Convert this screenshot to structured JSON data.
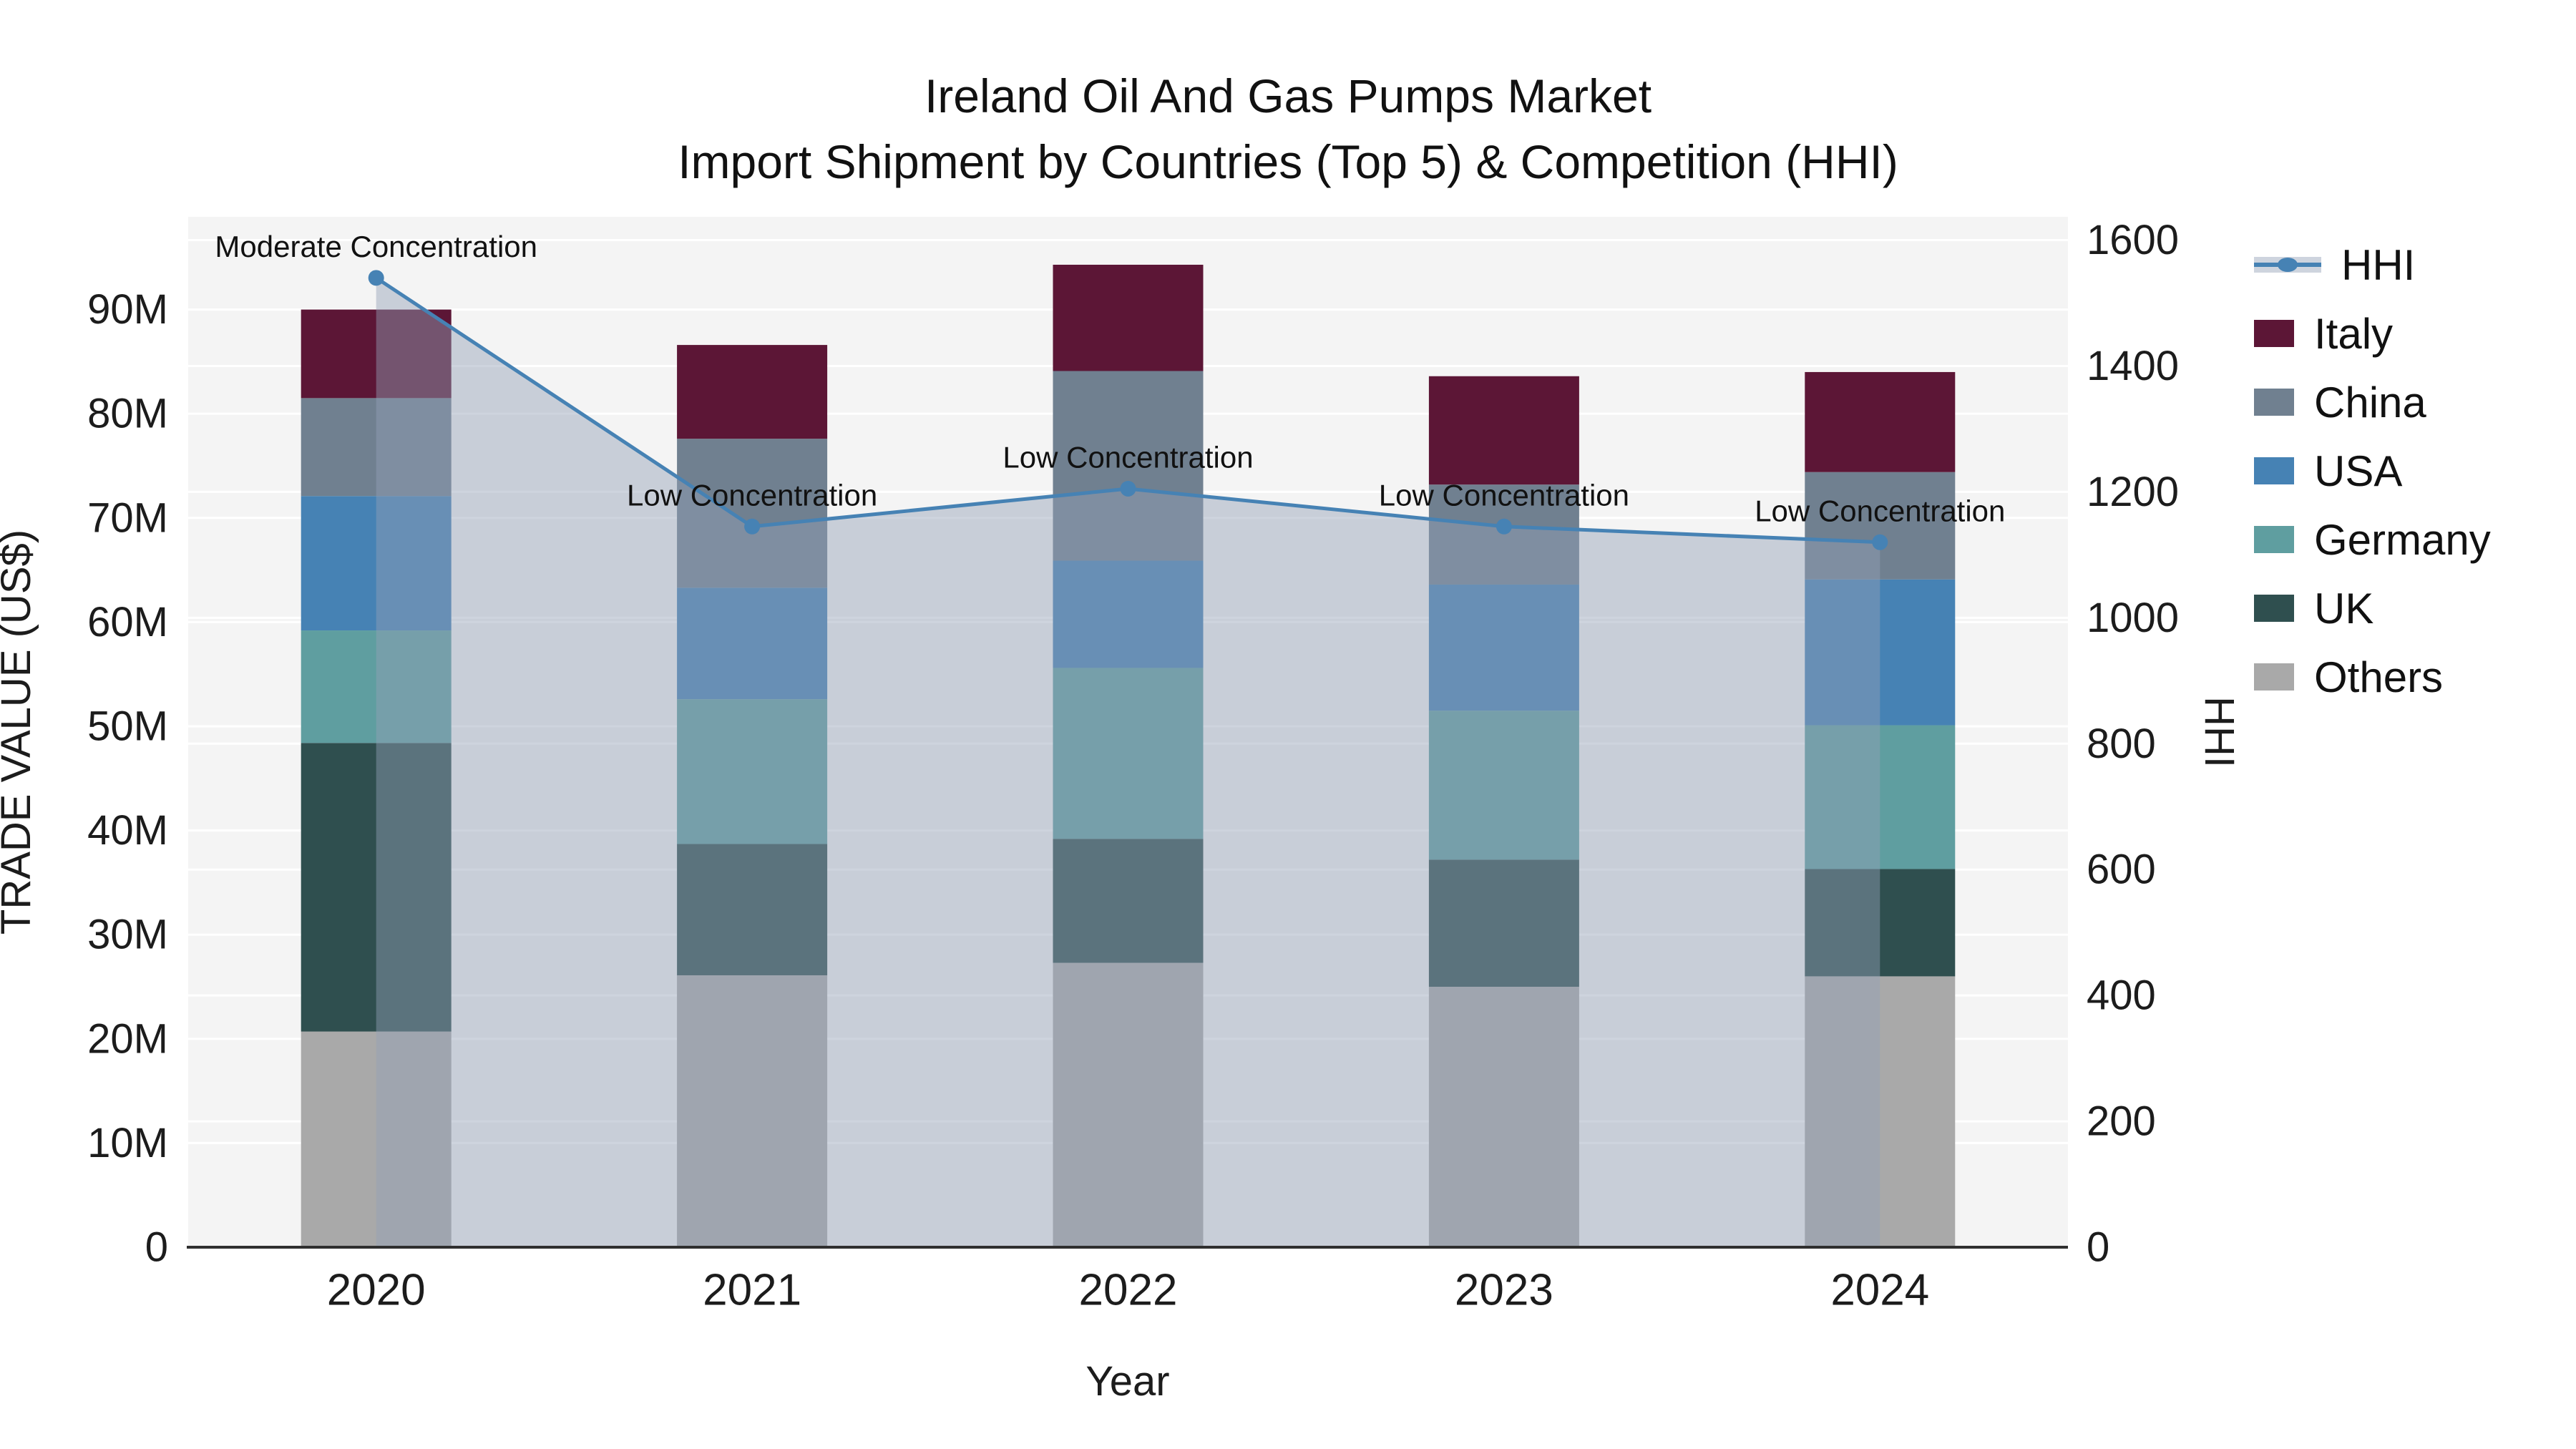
{
  "title": {
    "line1": "Ireland Oil And Gas Pumps Market",
    "line2": "Import Shipment by Countries (Top 5) & Competition (HHI)"
  },
  "chart_data": {
    "type": "combo: stacked bar (left axis) + line with area fill (right axis)",
    "x": [
      "2020",
      "2021",
      "2022",
      "2023",
      "2024"
    ],
    "xlabel": "Year",
    "left_axis": {
      "title": "TRADE VALUE (US$)",
      "tick_labels": [
        "0",
        "10M",
        "20M",
        "30M",
        "40M",
        "50M",
        "60M",
        "70M",
        "80M",
        "90M"
      ],
      "tick_values_musd": [
        0,
        10,
        20,
        30,
        40,
        50,
        60,
        70,
        80,
        90
      ],
      "range_max_musd": 98.9
    },
    "right_axis": {
      "title": "HHI",
      "tick_values": [
        0,
        200,
        400,
        600,
        800,
        1000,
        1200,
        1400,
        1600
      ],
      "range_max": 1637
    },
    "bar_series_bottom_to_top": [
      {
        "name": "Others",
        "color": "#A9A9A9",
        "values_musd": [
          20.7,
          26.1,
          27.3,
          25.0,
          26.0
        ]
      },
      {
        "name": "UK",
        "color": "#2F4F4F",
        "values_musd": [
          27.7,
          12.6,
          11.9,
          12.2,
          10.3
        ]
      },
      {
        "name": "Germany",
        "color": "#5F9EA0",
        "values_musd": [
          10.8,
          13.9,
          16.4,
          14.3,
          13.8
        ]
      },
      {
        "name": "USA",
        "color": "#4682B4",
        "values_musd": [
          12.9,
          10.7,
          10.3,
          12.1,
          14.0
        ]
      },
      {
        "name": "China",
        "color": "#708090",
        "values_musd": [
          9.4,
          14.3,
          18.2,
          9.6,
          10.3
        ]
      },
      {
        "name": "Italy",
        "color": "#5C1636",
        "values_musd": [
          8.5,
          9.0,
          10.2,
          10.4,
          9.6
        ]
      }
    ],
    "bar_totals_musd": [
      90.0,
      86.6,
      94.3,
      83.6,
      84.0
    ],
    "hhi_line": {
      "name": "HHI",
      "values": [
        1540,
        1145,
        1205,
        1145,
        1120
      ],
      "line_color": "#4682B4",
      "marker_color": "#4682B4",
      "area_fill_color": "rgba(146,160,182,0.45)"
    },
    "annotations": [
      {
        "x": "2020",
        "text": "Moderate Concentration"
      },
      {
        "x": "2021",
        "text": "Low Concentration"
      },
      {
        "x": "2022",
        "text": "Low Concentration"
      },
      {
        "x": "2023",
        "text": "Low Concentration"
      },
      {
        "x": "2024",
        "text": "Low Concentration"
      }
    ],
    "plot_background": "#F4F4F4",
    "gridline_color": "#FFFFFF",
    "legend_position": "right"
  },
  "legend": {
    "items": [
      {
        "label": "HHI",
        "kind": "line-area",
        "color": "#4682B4",
        "band_color": "#CED4DE"
      },
      {
        "label": "Italy",
        "kind": "swatch",
        "color": "#5C1636"
      },
      {
        "label": "China",
        "kind": "swatch",
        "color": "#708090"
      },
      {
        "label": "USA",
        "kind": "swatch",
        "color": "#4682B4"
      },
      {
        "label": "Germany",
        "kind": "swatch",
        "color": "#5F9EA0"
      },
      {
        "label": "UK",
        "kind": "swatch",
        "color": "#2F4F4F"
      },
      {
        "label": "Others",
        "kind": "swatch",
        "color": "#A9A9A9"
      }
    ]
  }
}
